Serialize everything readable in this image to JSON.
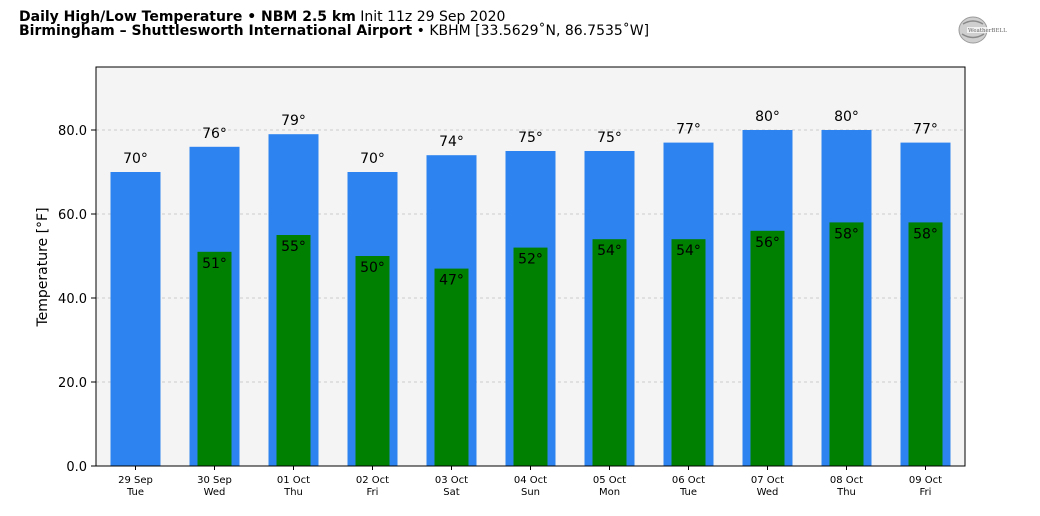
{
  "header": {
    "line1_bold": "Daily High/Low Temperature • NBM 2.5 km",
    "line1_rest": "Init 11z 29 Sep 2020",
    "line2_bold": "Birmingham – Shuttlesworth International Airport",
    "line2_rest": "• KBHM [33.5629˚N, 86.7535˚W]"
  },
  "logo": {
    "text": "WeatherBELL",
    "icon": "weatherbell-logo-icon"
  },
  "chart_data": {
    "type": "bar",
    "title": "Daily High/Low Temperature • NBM 2.5 km",
    "ylabel": "Temperature [°F]",
    "xlabel": "",
    "ylim": [
      0,
      95
    ],
    "yticks": [
      "0.0",
      "20.0",
      "40.0",
      "60.0",
      "80.0"
    ],
    "ytick_values": [
      0,
      20,
      40,
      60,
      80
    ],
    "grid": true,
    "categories": [
      {
        "date": "29 Sep",
        "day": "Tue"
      },
      {
        "date": "30 Sep",
        "day": "Wed"
      },
      {
        "date": "01 Oct",
        "day": "Thu"
      },
      {
        "date": "02 Oct",
        "day": "Fri"
      },
      {
        "date": "03 Oct",
        "day": "Sat"
      },
      {
        "date": "04 Oct",
        "day": "Sun"
      },
      {
        "date": "05 Oct",
        "day": "Mon"
      },
      {
        "date": "06 Oct",
        "day": "Tue"
      },
      {
        "date": "07 Oct",
        "day": "Wed"
      },
      {
        "date": "08 Oct",
        "day": "Thu"
      },
      {
        "date": "09 Oct",
        "day": "Fri"
      }
    ],
    "series": [
      {
        "name": "",
        "color": "#2d83ef",
        "values": [
          70,
          76,
          79,
          70,
          74,
          75,
          75,
          77,
          80,
          80,
          77
        ],
        "labels": [
          "70°",
          "76°",
          "79°",
          "70°",
          "74°",
          "75°",
          "75°",
          "77°",
          "80°",
          "80°",
          "77°"
        ]
      },
      {
        "name": "",
        "color": "#008000",
        "values": [
          null,
          51,
          55,
          50,
          47,
          52,
          54,
          54,
          56,
          58,
          58
        ],
        "labels": [
          "",
          "51°",
          "55°",
          "50°",
          "47°",
          "52°",
          "54°",
          "54°",
          "56°",
          "58°",
          "58°"
        ]
      }
    ],
    "plot_background": "#f4f4f4"
  }
}
